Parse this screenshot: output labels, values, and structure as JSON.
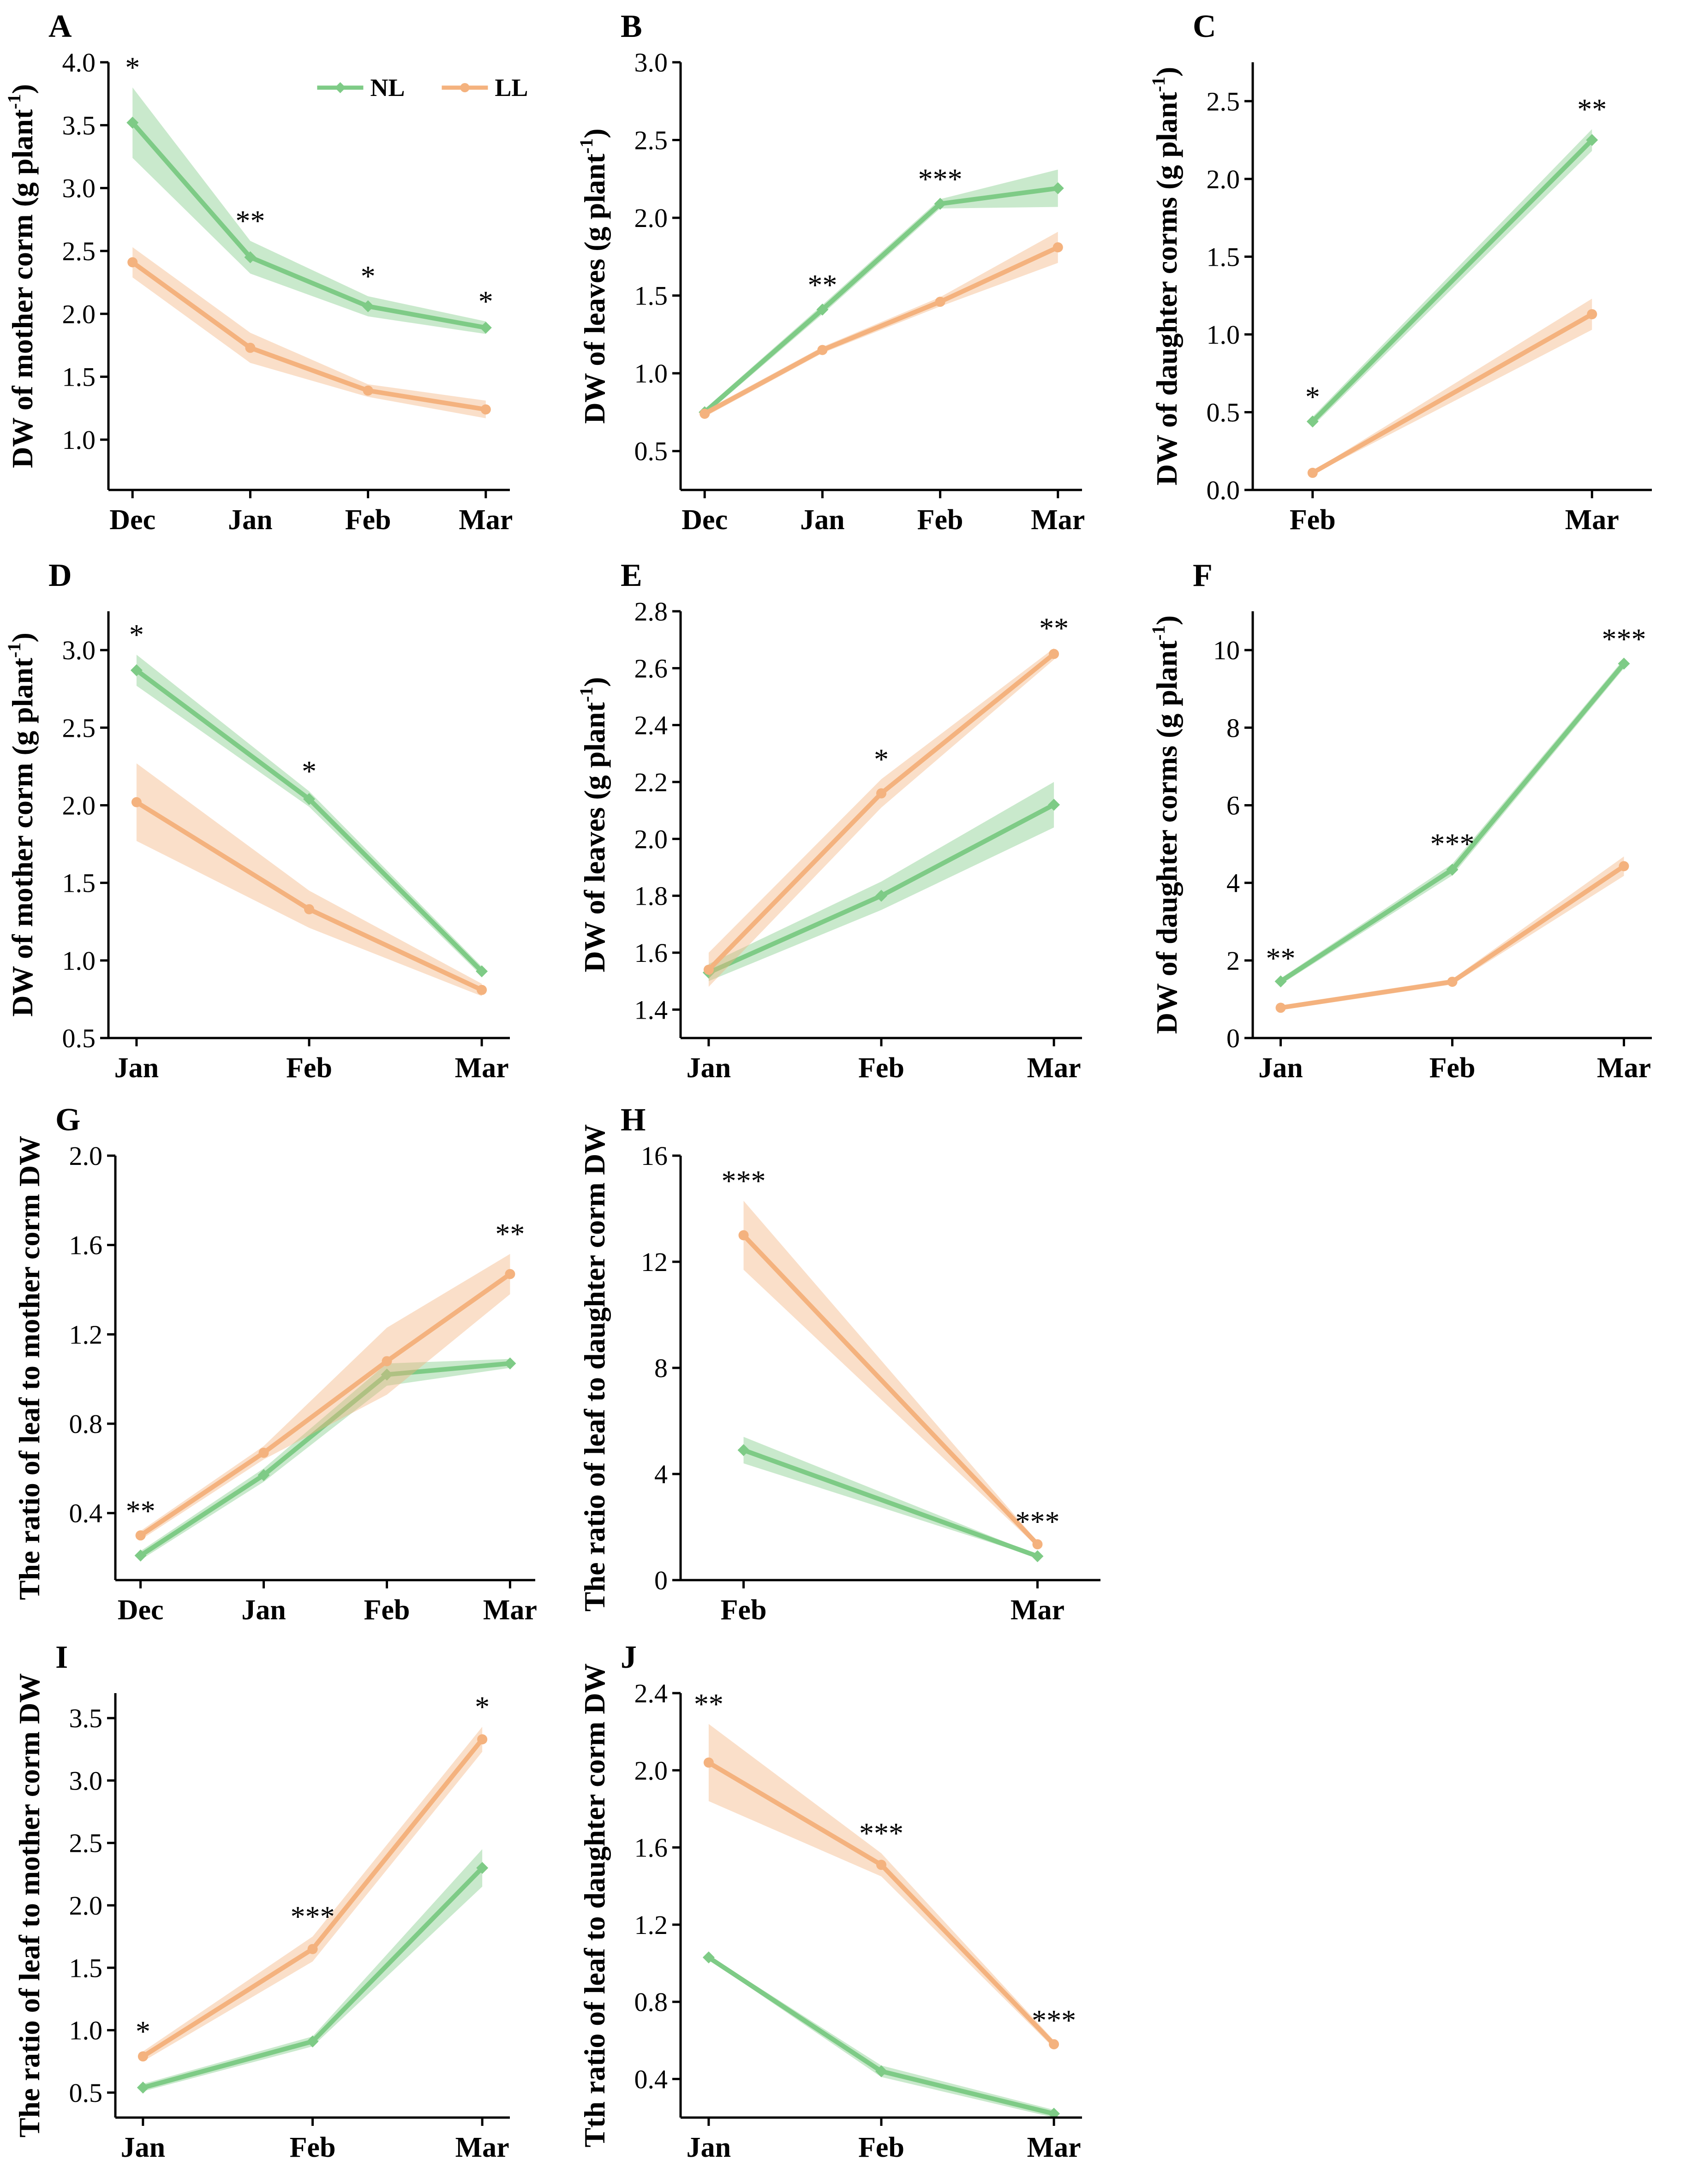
{
  "colors": {
    "NL": "#7ecb86",
    "LL": "#f4b27e"
  },
  "legend": [
    {
      "key": "NL",
      "label": "NL"
    },
    {
      "key": "LL",
      "label": "LL"
    }
  ],
  "chart_data": [
    {
      "id": "A",
      "letter": "A",
      "type": "line",
      "ylabel_main": "DW of mother corm (g plant",
      "ylabel_sup": "-1",
      "ylabel_end": ")",
      "categories": [
        "Dec",
        "Jan",
        "Feb",
        "Mar"
      ],
      "ylim": [
        0.6,
        4.0
      ],
      "yticks": [
        1.0,
        1.5,
        2.0,
        2.5,
        3.0,
        3.5,
        4.0
      ],
      "tick_decimals": 1,
      "series": [
        {
          "name": "NL",
          "values": [
            3.52,
            2.45,
            2.06,
            1.89
          ],
          "band": [
            0.28,
            0.13,
            0.08,
            0.05
          ]
        },
        {
          "name": "LL",
          "values": [
            2.41,
            1.73,
            1.39,
            1.24
          ],
          "band": [
            0.12,
            0.12,
            0.05,
            0.07
          ]
        }
      ],
      "annotations": [
        {
          "index": 0,
          "label": "*"
        },
        {
          "index": 1,
          "label": "**"
        },
        {
          "index": 2,
          "label": "*"
        },
        {
          "index": 3,
          "label": "*"
        }
      ]
    },
    {
      "id": "B",
      "letter": "B",
      "type": "line",
      "ylabel_main": "DW of leaves (g plant",
      "ylabel_sup": "-1",
      "ylabel_end": ")",
      "categories": [
        "Dec",
        "Jan",
        "Feb",
        "Mar"
      ],
      "ylim": [
        0.25,
        3.0
      ],
      "yticks": [
        0.5,
        1.0,
        1.5,
        2.0,
        2.5,
        3.0
      ],
      "tick_decimals": 1,
      "series": [
        {
          "name": "NL",
          "values": [
            0.75,
            1.41,
            2.09,
            2.19
          ],
          "band": [
            0.02,
            0.03,
            0.03,
            0.12
          ]
        },
        {
          "name": "LL",
          "values": [
            0.74,
            1.15,
            1.46,
            1.81
          ],
          "band": [
            0.02,
            0.02,
            0.03,
            0.1
          ]
        }
      ],
      "annotations": [
        {
          "index": 1,
          "label": "**"
        },
        {
          "index": 2,
          "label": "***"
        }
      ]
    },
    {
      "id": "C",
      "letter": "C",
      "type": "line",
      "ylabel_main": "DW of daughter corms (g plant",
      "ylabel_sup": "-1",
      "ylabel_end": ")",
      "categories": [
        "Feb",
        "Mar"
      ],
      "ylim": [
        0.0,
        2.75
      ],
      "yticks": [
        0.0,
        0.5,
        1.0,
        1.5,
        2.0,
        2.5
      ],
      "tick_decimals": 1,
      "series": [
        {
          "name": "NL",
          "values": [
            0.44,
            2.25
          ],
          "band": [
            0.03,
            0.07
          ]
        },
        {
          "name": "LL",
          "values": [
            0.11,
            1.13
          ],
          "band": [
            0.01,
            0.1
          ]
        }
      ],
      "annotations": [
        {
          "index": 0,
          "label": "*"
        },
        {
          "index": 1,
          "label": "**"
        }
      ]
    },
    {
      "id": "D",
      "letter": "D",
      "type": "line",
      "ylabel_main": "DW of mother corm (g plant",
      "ylabel_sup": "-1",
      "ylabel_end": ")",
      "categories": [
        "Jan",
        "Feb",
        "Mar"
      ],
      "ylim": [
        0.5,
        3.25
      ],
      "yticks": [
        0.5,
        1.0,
        1.5,
        2.0,
        2.5,
        3.0
      ],
      "tick_decimals": 1,
      "series": [
        {
          "name": "NL",
          "values": [
            2.87,
            2.04,
            0.93
          ],
          "band": [
            0.1,
            0.05,
            0.03
          ]
        },
        {
          "name": "LL",
          "values": [
            2.02,
            1.33,
            0.81
          ],
          "band": [
            0.25,
            0.12,
            0.04
          ]
        }
      ],
      "annotations": [
        {
          "index": 0,
          "label": "*"
        },
        {
          "index": 1,
          "label": "*"
        }
      ]
    },
    {
      "id": "E",
      "letter": "E",
      "type": "line",
      "ylabel_main": "DW of leaves (g plant",
      "ylabel_sup": "-1",
      "ylabel_end": ")",
      "categories": [
        "Jan",
        "Feb",
        "Mar"
      ],
      "ylim": [
        1.3,
        2.8
      ],
      "yticks": [
        1.4,
        1.6,
        1.8,
        2.0,
        2.2,
        2.4,
        2.6,
        2.8
      ],
      "tick_decimals": 1,
      "series": [
        {
          "name": "NL",
          "values": [
            1.53,
            1.8,
            2.12
          ],
          "band": [
            0.03,
            0.05,
            0.08
          ]
        },
        {
          "name": "LL",
          "values": [
            1.54,
            2.16,
            2.65
          ],
          "band": [
            0.06,
            0.05,
            0.02
          ]
        }
      ],
      "annotations": [
        {
          "index": 1,
          "label": "*"
        },
        {
          "index": 2,
          "label": "**"
        }
      ]
    },
    {
      "id": "F",
      "letter": "F",
      "type": "line",
      "ylabel_main": "DW of daughter corms (g plant",
      "ylabel_sup": "-1",
      "ylabel_end": ")",
      "categories": [
        "Jan",
        "Feb",
        "Mar"
      ],
      "ylim": [
        0,
        11
      ],
      "yticks": [
        0,
        2,
        4,
        6,
        8,
        10
      ],
      "tick_decimals": 0,
      "series": [
        {
          "name": "NL",
          "values": [
            1.46,
            4.34,
            9.65
          ],
          "band": [
            0.08,
            0.15,
            0.12
          ]
        },
        {
          "name": "LL",
          "values": [
            0.78,
            1.45,
            4.43
          ],
          "band": [
            0.06,
            0.07,
            0.25
          ]
        }
      ],
      "annotations": [
        {
          "index": 0,
          "label": "**"
        },
        {
          "index": 1,
          "label": "***"
        },
        {
          "index": 2,
          "label": "***"
        }
      ]
    },
    {
      "id": "G",
      "letter": "G",
      "type": "line",
      "ylabel_main": "The ratio of leaf to mother corm DW",
      "ylabel_sup": "",
      "ylabel_end": "",
      "categories": [
        "Dec",
        "Jan",
        "Feb",
        "Mar"
      ],
      "ylim": [
        0.1,
        2.0
      ],
      "yticks": [
        0.4,
        0.8,
        1.2,
        1.6,
        2.0
      ],
      "tick_decimals": 1,
      "series": [
        {
          "name": "NL",
          "values": [
            0.21,
            0.57,
            1.02,
            1.07
          ],
          "band": [
            0.02,
            0.03,
            0.05,
            0.02
          ]
        },
        {
          "name": "LL",
          "values": [
            0.3,
            0.67,
            1.08,
            1.47
          ],
          "band": [
            0.02,
            0.03,
            0.15,
            0.09
          ]
        }
      ],
      "annotations": [
        {
          "index": 0,
          "label": "**"
        },
        {
          "index": 3,
          "label": "**"
        }
      ]
    },
    {
      "id": "H",
      "letter": "H",
      "type": "line",
      "ylabel_main": "The ratio of leaf to daughter corm DW",
      "ylabel_sup": "",
      "ylabel_end": "",
      "categories": [
        "Feb",
        "Mar"
      ],
      "ylim": [
        0,
        16
      ],
      "yticks": [
        0,
        4,
        8,
        12,
        16
      ],
      "tick_decimals": 0,
      "series": [
        {
          "name": "NL",
          "values": [
            4.9,
            0.9
          ],
          "band": [
            0.5,
            0.05
          ]
        },
        {
          "name": "LL",
          "values": [
            13.0,
            1.35
          ],
          "band": [
            1.3,
            0.1
          ]
        }
      ],
      "annotations": [
        {
          "index": 0,
          "label": "***"
        },
        {
          "index": 1,
          "label": "***"
        }
      ]
    },
    {
      "id": "I",
      "letter": "I",
      "type": "line",
      "ylabel_main": "The ratio of leaf to mother corm DW",
      "ylabel_sup": "",
      "ylabel_end": "",
      "categories": [
        "Jan",
        "Feb",
        "Mar"
      ],
      "ylim": [
        0.3,
        3.7
      ],
      "yticks": [
        0.5,
        1.0,
        1.5,
        2.0,
        2.5,
        3.0,
        3.5
      ],
      "tick_decimals": 1,
      "series": [
        {
          "name": "NL",
          "values": [
            0.54,
            0.91,
            2.3
          ],
          "band": [
            0.03,
            0.04,
            0.15
          ]
        },
        {
          "name": "LL",
          "values": [
            0.79,
            1.65,
            3.33
          ],
          "band": [
            0.04,
            0.1,
            0.1
          ]
        }
      ],
      "annotations": [
        {
          "index": 0,
          "label": "*"
        },
        {
          "index": 1,
          "label": "***"
        },
        {
          "index": 2,
          "label": "*"
        }
      ]
    },
    {
      "id": "J",
      "letter": "J",
      "type": "line",
      "ylabel_main": "Tth ratio of leaf to daughter corm DW",
      "ylabel_sup": "",
      "ylabel_end": "",
      "categories": [
        "Jan",
        "Feb",
        "Mar"
      ],
      "ylim": [
        0.2,
        2.4
      ],
      "yticks": [
        0.4,
        0.8,
        1.2,
        1.6,
        2.0,
        2.4
      ],
      "tick_decimals": 1,
      "series": [
        {
          "name": "NL",
          "values": [
            1.03,
            0.44,
            0.22
          ],
          "band": [
            0.01,
            0.03,
            0.02
          ]
        },
        {
          "name": "LL",
          "values": [
            2.04,
            1.51,
            0.58
          ],
          "band": [
            0.2,
            0.06,
            0.02
          ]
        }
      ],
      "annotations": [
        {
          "index": 0,
          "label": "**"
        },
        {
          "index": 1,
          "label": "***"
        },
        {
          "index": 2,
          "label": "***"
        }
      ]
    }
  ]
}
